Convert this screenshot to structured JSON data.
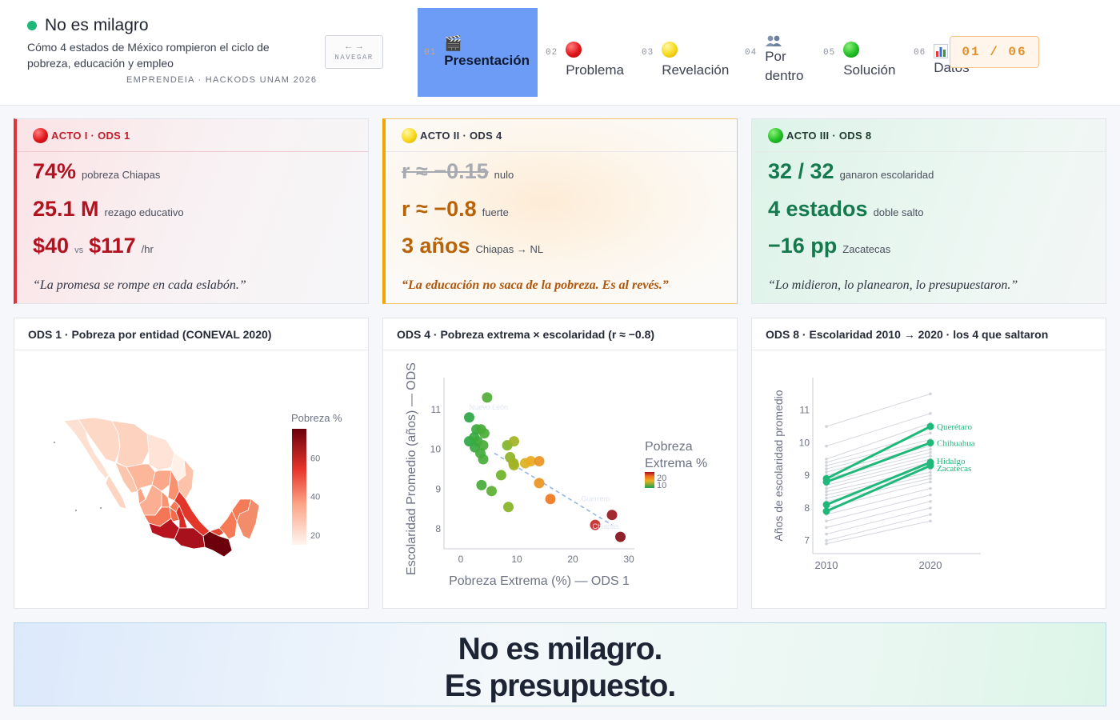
{
  "header": {
    "brand_title": "No es milagro",
    "subtitle": "Cómo 4 estados de México rompieron el ciclo de pobreza, educación y empleo",
    "org": "EMPRENDEIA · HACKODS UNAM 2026",
    "nav_arrows": "← →",
    "nav_label": "NAVEGAR",
    "counter": "01 / 06",
    "tabs": [
      {
        "num": "01",
        "icon": "clapper-icon",
        "label": "Presentación",
        "active": true
      },
      {
        "num": "02",
        "icon": "red-circle-icon",
        "label": "Problema",
        "active": false
      },
      {
        "num": "03",
        "icon": "yellow-circle-icon",
        "label": "Revelación",
        "active": false
      },
      {
        "num": "04",
        "icon": "people-icon",
        "label": "Por dentro",
        "active": false
      },
      {
        "num": "05",
        "icon": "green-circle-icon",
        "label": "Solución",
        "active": false
      },
      {
        "num": "06",
        "icon": "bar-chart-icon",
        "label": "Datos",
        "active": false
      }
    ]
  },
  "acts": [
    {
      "title": "ACTO I · ODS 1",
      "icon": "red-circle-icon",
      "color": "#e0323c",
      "stats": [
        {
          "value": "74%",
          "label": "pobreza Chiapas"
        },
        {
          "value": "25.1 M",
          "label": "rezago educativo"
        },
        {
          "value": "$40",
          "mid": "vs",
          "value2": "$117",
          "label": "/hr"
        }
      ],
      "quote": "“La promesa se rompe en cada eslabón.”"
    },
    {
      "title": "ACTO II · ODS 4",
      "icon": "yellow-circle-icon",
      "color": "#f0a500",
      "stats": [
        {
          "value": "r ≈ −0.15",
          "label": "nulo",
          "struck": true
        },
        {
          "value": "r ≈ −0.8",
          "label": "fuerte"
        },
        {
          "value": "3 años",
          "label": "Chiapas → NL"
        }
      ],
      "quote": "“La educación no saca de la pobreza. Es al revés.”"
    },
    {
      "title": "ACTO III · ODS 8",
      "icon": "green-circle-icon",
      "color": "#1fb87a",
      "stats": [
        {
          "value": "32 / 32",
          "label": "ganaron escolaridad"
        },
        {
          "value": "4 estados",
          "label": "doble salto"
        },
        {
          "value": "−16 pp",
          "label": "Zacatecas"
        }
      ],
      "quote": "“Lo midieron, lo planearon, lo presupuestaron.”"
    }
  ],
  "charts": {
    "map_title": "ODS 1 · Pobreza por entidad (CONEVAL 2020)",
    "scatter_title": "ODS 4 · Pobreza extrema × escolaridad (r ≈ −0.8)",
    "lines_title": "ODS 8 · Escolaridad 2010 → 2020 · los 4 que saltaron"
  },
  "chart_data": [
    {
      "type": "heatmap",
      "title": "ODS 1 · Pobreza por entidad (CONEVAL 2020)",
      "colorbar_title": "Pobreza %",
      "colorbar_ticks": [
        20,
        40,
        60
      ],
      "colorbar_range": [
        15,
        75
      ],
      "description_visible": "choropleth map of Mexico's states"
    },
    {
      "type": "scatter",
      "title": "ODS 4 · Pobreza extrema × escolaridad (r ≈ −0.8)",
      "xlabel": "Pobreza Extrema (%) — ODS 1",
      "ylabel": "Escolaridad Promedio (años) — ODS",
      "xlim": [
        -3,
        31
      ],
      "ylim": [
        7.5,
        11.8
      ],
      "xticks": [
        0,
        10,
        20,
        30
      ],
      "yticks": [
        8,
        9,
        10,
        11
      ],
      "colorbar_title": "Pobreza Extrema %",
      "colorbar_ticks": [
        10,
        20
      ],
      "point_labels": [
        "Nuevo León",
        "Guerrero",
        "Chiapas"
      ],
      "points": [
        [
          4.7,
          11.3
        ],
        [
          1.5,
          10.8
        ],
        [
          2.8,
          10.5
        ],
        [
          3.6,
          10.5
        ],
        [
          4.2,
          10.4
        ],
        [
          1.5,
          10.2
        ],
        [
          2.4,
          10.3
        ],
        [
          3.0,
          10.2
        ],
        [
          4.0,
          10.1
        ],
        [
          2.5,
          10.05
        ],
        [
          3.5,
          9.9
        ],
        [
          4.0,
          9.75
        ],
        [
          8.3,
          10.1
        ],
        [
          9.5,
          10.2
        ],
        [
          8.8,
          9.8
        ],
        [
          9.4,
          9.65
        ],
        [
          11.5,
          9.65
        ],
        [
          12.5,
          9.7
        ],
        [
          14.0,
          9.7
        ],
        [
          9.5,
          9.6
        ],
        [
          7.2,
          9.35
        ],
        [
          3.7,
          9.1
        ],
        [
          5.5,
          8.95
        ],
        [
          14.0,
          9.15
        ],
        [
          16.0,
          8.75
        ],
        [
          8.5,
          8.55
        ],
        [
          24.0,
          8.1
        ],
        [
          27.0,
          8.35
        ],
        [
          28.5,
          7.8
        ]
      ],
      "trend": [
        [
          6.0,
          9.9
        ],
        [
          27.0,
          8.1
        ]
      ]
    },
    {
      "type": "line",
      "title": "ODS 8 · Escolaridad 2010 → 2020 · los 4 que saltaron",
      "ylabel": "Años de escolaridad promedio",
      "x": [
        2010,
        2020
      ],
      "yticks": [
        7,
        8,
        9,
        10,
        11
      ],
      "ylim": [
        6.6,
        12.0
      ],
      "series": [
        {
          "name": "Querétaro",
          "values": [
            8.9,
            10.5
          ],
          "highlight": true
        },
        {
          "name": "Chihuahua",
          "values": [
            8.8,
            10.0
          ],
          "highlight": true
        },
        {
          "name": "Hidalgo",
          "values": [
            8.1,
            9.4
          ],
          "highlight": true
        },
        {
          "name": "Zacatecas",
          "values": [
            7.9,
            9.3
          ],
          "highlight": true
        },
        {
          "values": [
            10.5,
            11.5
          ]
        },
        {
          "values": [
            9.9,
            10.9
          ]
        },
        {
          "values": [
            9.5,
            10.6
          ]
        },
        {
          "values": [
            9.4,
            10.3
          ]
        },
        {
          "values": [
            9.3,
            10.1
          ]
        },
        {
          "values": [
            9.2,
            10.0
          ]
        },
        {
          "values": [
            9.1,
            9.9
          ]
        },
        {
          "values": [
            9.0,
            9.8
          ]
        },
        {
          "values": [
            8.9,
            9.7
          ]
        },
        {
          "values": [
            8.8,
            9.6
          ]
        },
        {
          "values": [
            8.7,
            9.5
          ]
        },
        {
          "values": [
            8.6,
            9.4
          ]
        },
        {
          "values": [
            8.5,
            9.2
          ]
        },
        {
          "values": [
            8.4,
            9.1
          ]
        },
        {
          "values": [
            8.3,
            9.0
          ]
        },
        {
          "values": [
            8.2,
            8.9
          ]
        },
        {
          "values": [
            8.0,
            8.8
          ]
        },
        {
          "values": [
            7.8,
            8.6
          ]
        },
        {
          "values": [
            7.6,
            8.4
          ]
        },
        {
          "values": [
            7.4,
            8.2
          ]
        },
        {
          "values": [
            7.2,
            8.0
          ]
        },
        {
          "values": [
            7.0,
            7.8
          ]
        },
        {
          "values": [
            6.9,
            7.6
          ]
        }
      ]
    }
  ],
  "footer": {
    "line1": "No es milagro.",
    "line2": "Es presupuesto."
  },
  "colors": {
    "accent_blue": "#6c9cf6",
    "red": "#e0323c",
    "amber": "#f0a500",
    "green": "#1fb87a"
  }
}
